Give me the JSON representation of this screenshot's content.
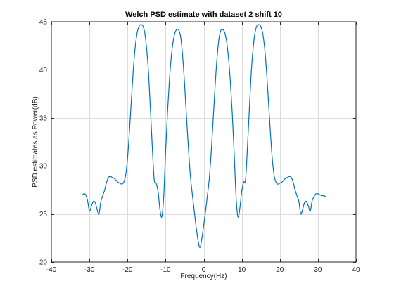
{
  "chart_data": {
    "type": "line",
    "title": "Welch PSD estimate with dataset 2 shift 10",
    "xlabel": "Frequency(Hz)",
    "ylabel": "PSD estimates as Power(dB)",
    "xlim": [
      -40,
      40
    ],
    "ylim": [
      20,
      45
    ],
    "xticks": [
      -40,
      -30,
      -20,
      -10,
      0,
      10,
      20,
      30,
      40
    ],
    "yticks": [
      20,
      25,
      30,
      35,
      40,
      45
    ],
    "grid": true,
    "legend": "none",
    "series": [
      {
        "color": "#0072bd",
        "x": [
          -32.0,
          -31.5,
          -31.0,
          -30.5,
          -30.0,
          -29.5,
          -29.0,
          -28.5,
          -28.0,
          -27.5,
          -27.0,
          -26.5,
          -26.0,
          -25.5,
          -25.0,
          -24.5,
          -24.0,
          -23.5,
          -23.0,
          -22.5,
          -22.0,
          -21.5,
          -21.0,
          -20.5,
          -20.0,
          -19.5,
          -19.0,
          -18.5,
          -18.0,
          -17.5,
          -17.0,
          -16.5,
          -16.0,
          -15.5,
          -15.0,
          -14.5,
          -14.0,
          -13.5,
          -13.0,
          -12.5,
          -12.0,
          -11.5,
          -11.0,
          -10.5,
          -10.0,
          -9.5,
          -9.0,
          -8.5,
          -8.0,
          -7.5,
          -7.0,
          -6.5,
          -6.0,
          -5.5,
          -5.0,
          -4.5,
          -4.0,
          -3.5,
          -3.0,
          -2.5,
          -2.0,
          -1.5,
          -1.0,
          -0.5,
          0.0,
          0.5,
          1.0,
          1.5,
          2.0,
          2.5,
          3.0,
          3.5,
          4.0,
          4.5,
          5.0,
          5.5,
          6.0,
          6.5,
          7.0,
          7.5,
          8.0,
          8.5,
          9.0,
          9.5,
          10.0,
          10.5,
          11.0,
          11.5,
          12.0,
          12.5,
          13.0,
          13.5,
          14.0,
          14.5,
          15.0,
          15.5,
          16.0,
          16.5,
          17.0,
          17.5,
          18.0,
          18.5,
          19.0,
          19.5,
          20.0,
          20.5,
          21.0,
          21.5,
          22.0,
          22.5,
          23.0,
          23.5,
          24.0,
          24.5,
          25.0,
          25.5,
          26.0,
          26.5,
          27.0,
          27.5,
          28.0,
          28.5,
          29.0,
          29.5,
          30.0,
          30.5,
          31.0,
          31.5,
          32.0
        ],
        "y": [
          26.9,
          27.1,
          27.0,
          26.4,
          25.3,
          25.8,
          26.3,
          26.2,
          25.5,
          25.0,
          26.3,
          26.9,
          27.5,
          28.3,
          28.8,
          28.9,
          28.8,
          28.7,
          28.5,
          28.3,
          28.2,
          28.1,
          28.3,
          29.0,
          30.8,
          33.6,
          36.8,
          39.9,
          42.3,
          43.8,
          44.5,
          44.7,
          44.6,
          43.9,
          42.3,
          39.8,
          36.0,
          32.0,
          28.6,
          28.2,
          27.4,
          25.5,
          24.7,
          26.8,
          31.5,
          35.6,
          38.9,
          41.4,
          43.0,
          43.9,
          44.2,
          44.1,
          43.3,
          41.3,
          38.4,
          35.0,
          31.8,
          29.0,
          27.1,
          25.4,
          23.7,
          22.3,
          21.5,
          22.4,
          23.8,
          25.3,
          27.0,
          28.8,
          31.6,
          34.9,
          38.3,
          41.2,
          43.2,
          44.1,
          44.2,
          43.9,
          43.0,
          41.3,
          38.8,
          35.5,
          31.4,
          26.8,
          24.7,
          25.6,
          27.4,
          28.3,
          28.6,
          32.0,
          36.0,
          39.8,
          42.3,
          43.9,
          44.6,
          44.7,
          44.5,
          43.8,
          42.3,
          39.9,
          36.8,
          33.6,
          30.8,
          29.0,
          28.3,
          28.1,
          28.2,
          28.3,
          28.5,
          28.7,
          28.8,
          28.9,
          28.8,
          28.3,
          27.5,
          26.9,
          26.3,
          25.0,
          25.5,
          26.2,
          26.3,
          25.8,
          25.3,
          26.4,
          26.8,
          27.1,
          27.1,
          27.0,
          26.9,
          26.9,
          26.8
        ]
      }
    ]
  }
}
